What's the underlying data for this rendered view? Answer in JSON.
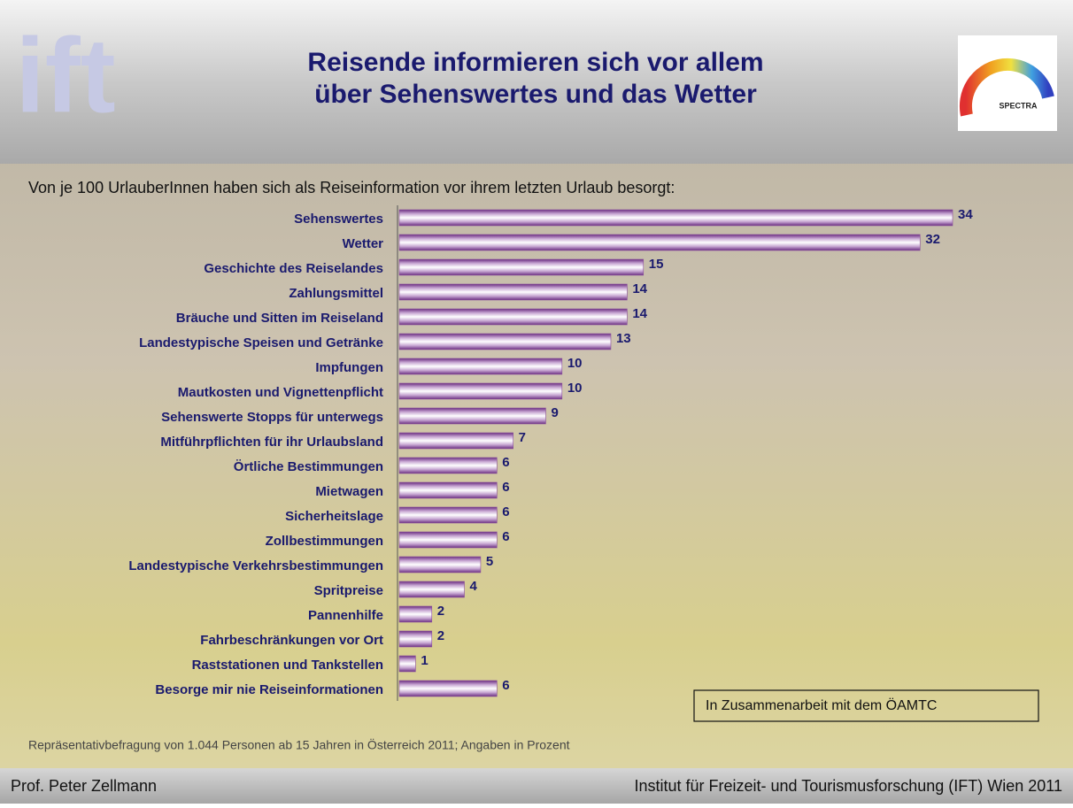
{
  "header": {
    "title": [
      "Reisende informieren sich vor allem",
      "über Sehenswertes und das Wetter"
    ],
    "logo_left": "ift",
    "logo_right": "SPECTRA"
  },
  "chart_data": {
    "type": "bar",
    "orientation": "horizontal",
    "subtitle": "Von je 100 UrlauberInnen haben sich als Reiseinformation vor ihrem letzten Urlaub besorgt:",
    "categories": [
      "Sehenswertes",
      "Wetter",
      "Geschichte des Reiselandes",
      "Zahlungsmittel",
      "Bräuche und Sitten im Reiseland",
      "Landestypische Speisen und Getränke",
      "Impfungen",
      "Mautkosten und Vignettenpflicht",
      "Sehenswerte Stopps für unterwegs",
      "Mitführpflichten für ihr Urlaubsland",
      "Örtliche Bestimmungen",
      "Mietwagen",
      "Sicherheitslage",
      "Zollbestimmungen",
      "Landestypische Verkehrsbestimmungen",
      "Spritpreise",
      "Pannenhilfe",
      "Fahrbeschränkungen vor Ort",
      "Raststationen und Tankstellen",
      "Besorge mir nie Reiseinformationen"
    ],
    "values": [
      34,
      32,
      15,
      14,
      14,
      13,
      10,
      10,
      9,
      7,
      6,
      6,
      6,
      6,
      5,
      4,
      2,
      2,
      1,
      6
    ],
    "color": "#8a4f9e",
    "annotation": "In Zusammenarbeit mit dem ÖAMTC",
    "note": "Repräsentativbefragung von 1.044 Personen ab 15 Jahren in Österreich 2011; Angaben in Prozent"
  },
  "footer": {
    "left": "Prof. Peter Zellmann",
    "right": "Institut für Freizeit- und Tourismusforschung (IFT) Wien  2011"
  }
}
